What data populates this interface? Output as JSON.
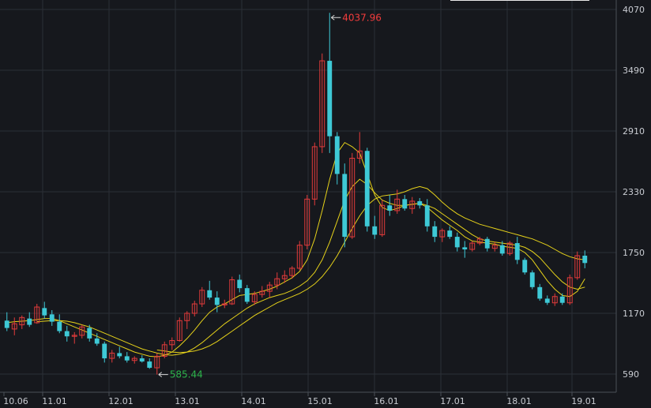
{
  "chart_data": {
    "type": "candlestick",
    "x_ticks": [
      "10.06",
      "11.01",
      "12.01",
      "13.01",
      "14.01",
      "15.01",
      "16.01",
      "17.01",
      "18.01",
      "19.01"
    ],
    "y_ticks": [
      590,
      1170,
      1750,
      2330,
      2910,
      3490,
      4070
    ],
    "ylim": [
      440,
      4070
    ],
    "annotations": {
      "high": {
        "label": "4037.96",
        "value": 4037.96,
        "color": "#f23c3c"
      },
      "low": {
        "label": "585.44",
        "value": 585.44,
        "color": "#2cb34a"
      }
    },
    "colors": {
      "up": "#e23b3b",
      "down": "#3ec9d6",
      "ma_lines": "#e6d21a",
      "background": "#16181d"
    },
    "series": {
      "ohlc": [
        [
          1100,
          1180,
          1000,
          1030
        ],
        [
          1020,
          1130,
          960,
          1070
        ],
        [
          1060,
          1150,
          1020,
          1130
        ],
        [
          1120,
          1180,
          1040,
          1060
        ],
        [
          1080,
          1260,
          1070,
          1230
        ],
        [
          1220,
          1280,
          1120,
          1150
        ],
        [
          1160,
          1200,
          1050,
          1090
        ],
        [
          1090,
          1160,
          980,
          1000
        ],
        [
          1000,
          1050,
          900,
          950
        ],
        [
          950,
          990,
          880,
          960
        ],
        [
          960,
          1060,
          930,
          1040
        ],
        [
          1030,
          1060,
          900,
          930
        ],
        [
          930,
          980,
          860,
          880
        ],
        [
          880,
          900,
          700,
          740
        ],
        [
          740,
          820,
          700,
          790
        ],
        [
          790,
          850,
          740,
          760
        ],
        [
          760,
          800,
          700,
          720
        ],
        [
          720,
          760,
          690,
          740
        ],
        [
          740,
          770,
          700,
          710
        ],
        [
          710,
          740,
          640,
          650
        ],
        [
          650,
          790,
          585,
          760
        ],
        [
          760,
          900,
          740,
          870
        ],
        [
          870,
          940,
          820,
          910
        ],
        [
          910,
          1130,
          900,
          1100
        ],
        [
          1100,
          1190,
          1020,
          1170
        ],
        [
          1170,
          1290,
          1140,
          1260
        ],
        [
          1260,
          1420,
          1230,
          1390
        ],
        [
          1390,
          1480,
          1300,
          1320
        ],
        [
          1320,
          1380,
          1180,
          1250
        ],
        [
          1250,
          1300,
          1220,
          1260
        ],
        [
          1260,
          1520,
          1250,
          1490
        ],
        [
          1490,
          1540,
          1370,
          1410
        ],
        [
          1410,
          1440,
          1260,
          1280
        ],
        [
          1280,
          1380,
          1250,
          1350
        ],
        [
          1350,
          1430,
          1320,
          1380
        ],
        [
          1380,
          1470,
          1320,
          1440
        ],
        [
          1440,
          1560,
          1400,
          1500
        ],
        [
          1500,
          1580,
          1460,
          1530
        ],
        [
          1530,
          1620,
          1500,
          1600
        ],
        [
          1600,
          1860,
          1580,
          1820
        ],
        [
          1820,
          2300,
          1780,
          2260
        ],
        [
          2260,
          2800,
          2200,
          2760
        ],
        [
          2760,
          3650,
          2700,
          3580
        ],
        [
          3580,
          4037.96,
          2700,
          2860
        ],
        [
          2860,
          2900,
          2400,
          2500
        ],
        [
          2500,
          2600,
          1800,
          1900
        ],
        [
          1900,
          2700,
          1880,
          2650
        ],
        [
          2650,
          2900,
          2600,
          2720
        ],
        [
          2720,
          2750,
          1950,
          2000
        ],
        [
          2000,
          2100,
          1880,
          1920
        ],
        [
          1920,
          2250,
          1900,
          2200
        ],
        [
          2200,
          2300,
          2100,
          2150
        ],
        [
          2150,
          2350,
          2120,
          2260
        ],
        [
          2260,
          2300,
          2150,
          2170
        ],
        [
          2170,
          2280,
          2120,
          2240
        ],
        [
          2240,
          2270,
          2170,
          2200
        ],
        [
          2200,
          2260,
          1950,
          2000
        ],
        [
          2000,
          2050,
          1850,
          1900
        ],
        [
          1900,
          1980,
          1850,
          1960
        ],
        [
          1960,
          2000,
          1880,
          1900
        ],
        [
          1900,
          1940,
          1760,
          1800
        ],
        [
          1800,
          1860,
          1700,
          1780
        ],
        [
          1780,
          1860,
          1760,
          1840
        ],
        [
          1840,
          1900,
          1820,
          1880
        ],
        [
          1880,
          1900,
          1760,
          1790
        ],
        [
          1790,
          1850,
          1760,
          1820
        ],
        [
          1820,
          1860,
          1720,
          1740
        ],
        [
          1740,
          1860,
          1720,
          1840
        ],
        [
          1840,
          1900,
          1640,
          1680
        ],
        [
          1680,
          1700,
          1540,
          1560
        ],
        [
          1560,
          1580,
          1400,
          1420
        ],
        [
          1420,
          1450,
          1290,
          1310
        ],
        [
          1310,
          1340,
          1250,
          1270
        ],
        [
          1270,
          1360,
          1240,
          1330
        ],
        [
          1330,
          1360,
          1250,
          1270
        ],
        [
          1270,
          1540,
          1250,
          1510
        ],
        [
          1510,
          1760,
          1490,
          1720
        ],
        [
          1720,
          1770,
          1600,
          1650
        ]
      ],
      "ma_short": [
        1080,
        1090,
        1095,
        1100,
        1110,
        1120,
        1120,
        1100,
        1070,
        1040,
        1010,
        980,
        950,
        920,
        890,
        860,
        830,
        800,
        780,
        760,
        755,
        770,
        800,
        860,
        930,
        1010,
        1100,
        1180,
        1230,
        1260,
        1300,
        1340,
        1350,
        1360,
        1380,
        1400,
        1430,
        1470,
        1510,
        1570,
        1680,
        1880,
        2150,
        2450,
        2700,
        2800,
        2760,
        2700,
        2500,
        2300,
        2180,
        2150,
        2170,
        2200,
        2210,
        2220,
        2180,
        2120,
        2060,
        2010,
        1960,
        1900,
        1860,
        1850,
        1840,
        1830,
        1810,
        1800,
        1790,
        1750,
        1680,
        1580,
        1480,
        1400,
        1340,
        1330,
        1380,
        1500
      ],
      "ma_mid": [
        null,
        null,
        null,
        null,
        1090,
        1095,
        1100,
        1100,
        1095,
        1080,
        1060,
        1040,
        1010,
        980,
        950,
        920,
        890,
        860,
        830,
        810,
        790,
        775,
        770,
        780,
        800,
        840,
        890,
        950,
        1010,
        1070,
        1120,
        1170,
        1220,
        1260,
        1290,
        1320,
        1340,
        1360,
        1390,
        1430,
        1480,
        1560,
        1680,
        1850,
        2050,
        2250,
        2380,
        2450,
        2400,
        2320,
        2250,
        2220,
        2200,
        2200,
        2210,
        2220,
        2200,
        2170,
        2120,
        2070,
        2020,
        1970,
        1920,
        1880,
        1860,
        1850,
        1840,
        1830,
        1820,
        1800,
        1760,
        1700,
        1620,
        1540,
        1470,
        1420,
        1400,
        1420
      ],
      "ma_long": [
        null,
        null,
        null,
        null,
        null,
        null,
        null,
        null,
        null,
        null,
        null,
        null,
        null,
        null,
        null,
        null,
        null,
        null,
        null,
        null,
        820,
        810,
        800,
        795,
        800,
        810,
        830,
        860,
        900,
        950,
        1000,
        1050,
        1100,
        1150,
        1190,
        1230,
        1270,
        1300,
        1330,
        1360,
        1400,
        1450,
        1520,
        1610,
        1720,
        1850,
        1980,
        2100,
        2200,
        2260,
        2290,
        2300,
        2310,
        2330,
        2360,
        2380,
        2360,
        2300,
        2230,
        2170,
        2120,
        2080,
        2050,
        2020,
        2000,
        1980,
        1960,
        1940,
        1920,
        1900,
        1880,
        1850,
        1820,
        1780,
        1740,
        1710,
        1690,
        1680
      ]
    }
  }
}
